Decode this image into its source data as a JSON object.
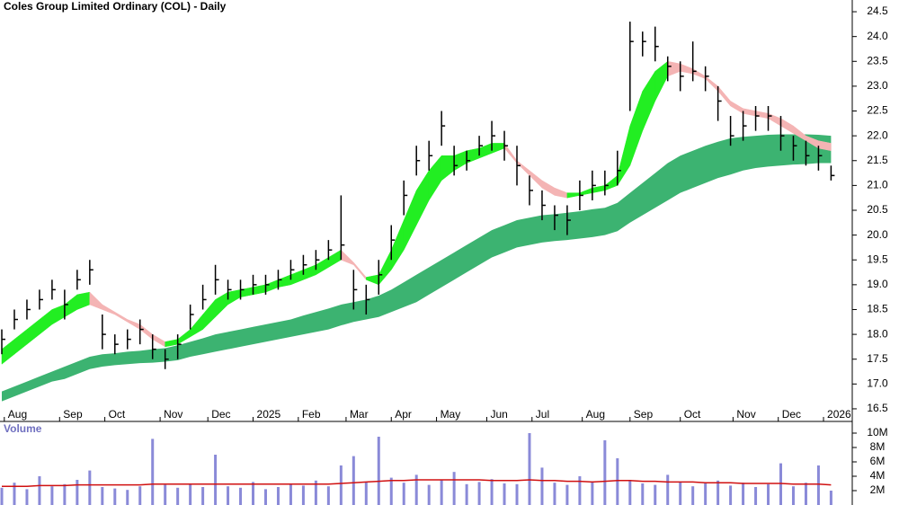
{
  "chart_data": [
    {
      "type": "ohlc",
      "title": "Coles Group Limited Ordinary (COL) - Daily",
      "color": "#000000",
      "x": [
        0,
        5,
        10,
        15,
        20,
        25,
        30,
        35,
        40,
        45,
        50,
        55,
        60,
        65,
        70,
        75,
        80,
        85,
        90,
        95,
        100,
        105,
        110,
        115,
        120,
        125,
        130,
        135,
        140,
        145,
        150,
        155,
        160,
        165,
        170,
        175,
        180,
        185,
        190,
        195,
        200,
        205,
        210,
        215,
        220,
        225,
        230,
        235,
        240,
        245,
        250,
        255,
        260,
        265,
        270,
        275,
        280,
        285,
        290,
        295,
        300,
        305,
        310,
        315,
        320,
        325,
        330
      ],
      "xlim": [
        0,
        332
      ],
      "xticks": [
        {
          "value": 1,
          "label": "Aug"
        },
        {
          "value": 23,
          "label": "Sep"
        },
        {
          "value": 41,
          "label": "Oct"
        },
        {
          "value": 63,
          "label": "Nov"
        },
        {
          "value": 82,
          "label": "Dec"
        },
        {
          "value": 100,
          "label": "2025"
        },
        {
          "value": 118,
          "label": "Feb"
        },
        {
          "value": 137,
          "label": "Mar"
        },
        {
          "value": 155,
          "label": "Apr"
        },
        {
          "value": 173,
          "label": "May"
        },
        {
          "value": 193,
          "label": "Jun"
        },
        {
          "value": 211,
          "label": "Jul"
        },
        {
          "value": 231,
          "label": "Aug"
        },
        {
          "value": 250,
          "label": "Sep"
        },
        {
          "value": 270,
          "label": "Oct"
        },
        {
          "value": 291,
          "label": "Nov"
        },
        {
          "value": 309,
          "label": "Dec"
        },
        {
          "value": 327,
          "label": "2026"
        }
      ],
      "ylim": [
        16.3,
        24.7
      ],
      "yticks": [
        {
          "value": 16.5,
          "label": "16.5"
        },
        {
          "value": 17,
          "label": "17.0"
        },
        {
          "value": 17.5,
          "label": "17.5"
        },
        {
          "value": 18,
          "label": "18.0"
        },
        {
          "value": 18.5,
          "label": "18.5"
        },
        {
          "value": 19,
          "label": "19.0"
        },
        {
          "value": 19.5,
          "label": "19.5"
        },
        {
          "value": 20,
          "label": "20.0"
        },
        {
          "value": 20.5,
          "label": "20.5"
        },
        {
          "value": 21,
          "label": "21.0"
        },
        {
          "value": 21.5,
          "label": "21.5"
        },
        {
          "value": 22,
          "label": "22.0"
        },
        {
          "value": 22.5,
          "label": "22.5"
        },
        {
          "value": 23,
          "label": "23.0"
        },
        {
          "value": 23.5,
          "label": "23.5"
        },
        {
          "value": 24,
          "label": "24.0"
        },
        {
          "value": 24.5,
          "label": "24.5"
        }
      ],
      "close": [
        17.9,
        18.3,
        18.5,
        18.7,
        18.9,
        18.6,
        19.1,
        19.3,
        18.0,
        17.8,
        17.9,
        18.1,
        17.7,
        17.5,
        17.8,
        18.4,
        18.7,
        19.1,
        18.9,
        18.9,
        19.0,
        19.0,
        19.1,
        19.3,
        19.4,
        19.5,
        19.7,
        19.8,
        18.9,
        18.7,
        19.2,
        19.9,
        20.8,
        21.5,
        21.6,
        22.2,
        21.4,
        21.5,
        21.8,
        22.0,
        21.8,
        21.4,
        20.9,
        20.6,
        20.4,
        20.3,
        20.8,
        21.0,
        21.0,
        21.3,
        23.9,
        23.9,
        23.8,
        23.4,
        23.2,
        23.3,
        23.2,
        22.7,
        22.0,
        22.2,
        22.4,
        22.4,
        22.0,
        21.8,
        21.6,
        21.6,
        21.2
      ],
      "high": [
        18.1,
        18.5,
        18.7,
        18.9,
        19.1,
        18.9,
        19.3,
        19.5,
        18.4,
        18.0,
        18.1,
        18.3,
        18.0,
        17.7,
        18.0,
        18.6,
        19.0,
        19.4,
        19.1,
        19.1,
        19.2,
        19.2,
        19.3,
        19.5,
        19.6,
        19.7,
        19.9,
        20.8,
        19.3,
        19.0,
        19.5,
        20.2,
        21.1,
        21.8,
        21.9,
        22.5,
        21.8,
        21.7,
        22.0,
        22.3,
        22.1,
        21.8,
        21.2,
        20.9,
        20.6,
        20.6,
        21.1,
        21.3,
        21.3,
        21.7,
        24.3,
        24.1,
        24.2,
        23.6,
        23.5,
        23.9,
        23.4,
        23.0,
        22.4,
        22.5,
        22.6,
        22.6,
        22.4,
        22.0,
        21.9,
        21.8,
        21.4
      ],
      "low": [
        17.6,
        18.1,
        18.3,
        18.5,
        18.7,
        18.3,
        18.9,
        19.0,
        17.7,
        17.6,
        17.7,
        17.8,
        17.5,
        17.3,
        17.5,
        18.1,
        18.5,
        18.8,
        18.7,
        18.7,
        18.8,
        18.8,
        18.9,
        19.1,
        19.2,
        19.3,
        19.5,
        19.5,
        18.5,
        18.4,
        18.8,
        19.5,
        20.4,
        21.2,
        21.3,
        21.8,
        21.2,
        21.3,
        21.6,
        21.7,
        21.5,
        21.0,
        20.6,
        20.3,
        20.1,
        20.0,
        20.5,
        20.7,
        20.8,
        21.0,
        22.5,
        23.6,
        23.5,
        23.1,
        22.9,
        23.1,
        22.9,
        22.3,
        21.8,
        21.9,
        22.1,
        22.1,
        21.7,
        21.5,
        21.4,
        21.3,
        21.1
      ],
      "fast_ribbon": {
        "rising_color": "#22ee22",
        "falling_color": "#f4b4b4",
        "upper": [
          17.7,
          17.9,
          18.1,
          18.3,
          18.5,
          18.6,
          18.8,
          18.85,
          18.6,
          18.45,
          18.3,
          18.2,
          18.0,
          17.85,
          17.9,
          18.1,
          18.4,
          18.7,
          18.85,
          18.9,
          18.95,
          19.0,
          19.1,
          19.2,
          19.3,
          19.4,
          19.55,
          19.7,
          19.45,
          19.15,
          19.2,
          19.7,
          20.3,
          20.9,
          21.3,
          21.6,
          21.6,
          21.7,
          21.75,
          21.85,
          21.85,
          21.5,
          21.3,
          21.1,
          20.95,
          20.85,
          20.85,
          20.95,
          21.0,
          21.2,
          22.2,
          22.9,
          23.3,
          23.5,
          23.45,
          23.35,
          23.2,
          23.0,
          22.7,
          22.55,
          22.5,
          22.45,
          22.35,
          22.2,
          22.0,
          21.9,
          21.85
        ],
        "lower": [
          17.4,
          17.6,
          17.8,
          18.0,
          18.2,
          18.35,
          18.5,
          18.6,
          18.5,
          18.4,
          18.25,
          18.1,
          17.9,
          17.75,
          17.8,
          17.95,
          18.1,
          18.35,
          18.6,
          18.75,
          18.8,
          18.85,
          18.95,
          19.0,
          19.1,
          19.2,
          19.35,
          19.5,
          19.4,
          19.1,
          19.0,
          19.3,
          19.7,
          20.2,
          20.7,
          21.1,
          21.3,
          21.45,
          21.55,
          21.65,
          21.75,
          21.45,
          21.2,
          20.95,
          20.8,
          20.75,
          20.8,
          20.85,
          20.9,
          21.0,
          21.4,
          22.1,
          22.7,
          23.2,
          23.3,
          23.25,
          23.15,
          22.9,
          22.6,
          22.45,
          22.4,
          22.35,
          22.2,
          22.05,
          21.9,
          21.75,
          21.7
        ]
      },
      "slow_ribbon": {
        "color": "#3cb371",
        "upper": [
          16.85,
          16.95,
          17.05,
          17.15,
          17.25,
          17.35,
          17.45,
          17.55,
          17.6,
          17.62,
          17.65,
          17.67,
          17.7,
          17.72,
          17.78,
          17.85,
          17.92,
          18.0,
          18.05,
          18.1,
          18.15,
          18.2,
          18.25,
          18.3,
          18.38,
          18.45,
          18.52,
          18.6,
          18.65,
          18.7,
          18.78,
          18.9,
          19.05,
          19.2,
          19.35,
          19.5,
          19.65,
          19.8,
          19.95,
          20.1,
          20.2,
          20.3,
          20.35,
          20.4,
          20.42,
          20.45,
          20.48,
          20.52,
          20.55,
          20.65,
          20.85,
          21.05,
          21.25,
          21.45,
          21.6,
          21.7,
          21.8,
          21.88,
          21.95,
          21.98,
          22.0,
          22.02,
          22.03,
          22.03,
          22.03,
          22.02,
          22.0
        ],
        "lower": [
          16.65,
          16.75,
          16.85,
          16.95,
          17.05,
          17.1,
          17.2,
          17.3,
          17.35,
          17.38,
          17.4,
          17.42,
          17.43,
          17.45,
          17.48,
          17.55,
          17.6,
          17.65,
          17.7,
          17.75,
          17.8,
          17.85,
          17.9,
          17.95,
          18.0,
          18.05,
          18.1,
          18.18,
          18.25,
          18.3,
          18.35,
          18.45,
          18.55,
          18.65,
          18.8,
          18.95,
          19.1,
          19.25,
          19.4,
          19.55,
          19.65,
          19.75,
          19.8,
          19.85,
          19.88,
          19.9,
          19.93,
          19.96,
          20.0,
          20.08,
          20.25,
          20.4,
          20.55,
          20.7,
          20.85,
          20.95,
          21.05,
          21.15,
          21.22,
          21.3,
          21.35,
          21.38,
          21.4,
          21.42,
          21.43,
          21.45,
          21.45
        ]
      }
    },
    {
      "type": "bar",
      "title": "Volume",
      "color": "#8a8ad8",
      "values": [
        2.4,
        3.1,
        2.2,
        4.0,
        2.6,
        2.9,
        3.5,
        4.8,
        2.5,
        2.3,
        2.1,
        2.6,
        9.2,
        2.8,
        2.4,
        3.0,
        2.5,
        7.0,
        2.6,
        2.4,
        3.2,
        2.2,
        2.5,
        2.9,
        2.7,
        3.4,
        2.6,
        5.5,
        6.8,
        3.2,
        9.5,
        3.8,
        3.1,
        4.2,
        2.8,
        3.5,
        4.6,
        2.9,
        3.2,
        3.6,
        3.0,
        2.9,
        10.0,
        5.2,
        3.1,
        2.8,
        4.0,
        3.3,
        9.0,
        6.5,
        3.5,
        3.0,
        2.8,
        4.2,
        3.2,
        2.6,
        3.0,
        3.4,
        2.7,
        3.1,
        2.5,
        2.9,
        5.8,
        2.6,
        3.1,
        5.5,
        2.0
      ],
      "average": {
        "color": "#d01010",
        "values": [
          2.6,
          2.6,
          2.6,
          2.7,
          2.7,
          2.7,
          2.8,
          2.8,
          2.8,
          2.8,
          2.8,
          2.8,
          2.9,
          2.9,
          2.9,
          2.9,
          2.9,
          2.9,
          2.9,
          2.9,
          2.9,
          2.9,
          2.9,
          2.9,
          2.9,
          2.9,
          2.9,
          3.0,
          3.1,
          3.2,
          3.3,
          3.4,
          3.4,
          3.5,
          3.5,
          3.5,
          3.5,
          3.5,
          3.5,
          3.4,
          3.4,
          3.4,
          3.5,
          3.4,
          3.4,
          3.3,
          3.3,
          3.2,
          3.3,
          3.4,
          3.4,
          3.3,
          3.3,
          3.2,
          3.2,
          3.2,
          3.1,
          3.1,
          3.1,
          3.0,
          3.0,
          3.0,
          3.0,
          2.9,
          2.9,
          2.9,
          2.8
        ]
      },
      "ylim": [
        0,
        11.5
      ],
      "yticks": [
        {
          "value": 2,
          "label": "2M"
        },
        {
          "value": 4,
          "label": "4M"
        },
        {
          "value": 6,
          "label": "6M"
        },
        {
          "value": 8,
          "label": "8M"
        },
        {
          "value": 10,
          "label": "10M"
        }
      ]
    }
  ]
}
